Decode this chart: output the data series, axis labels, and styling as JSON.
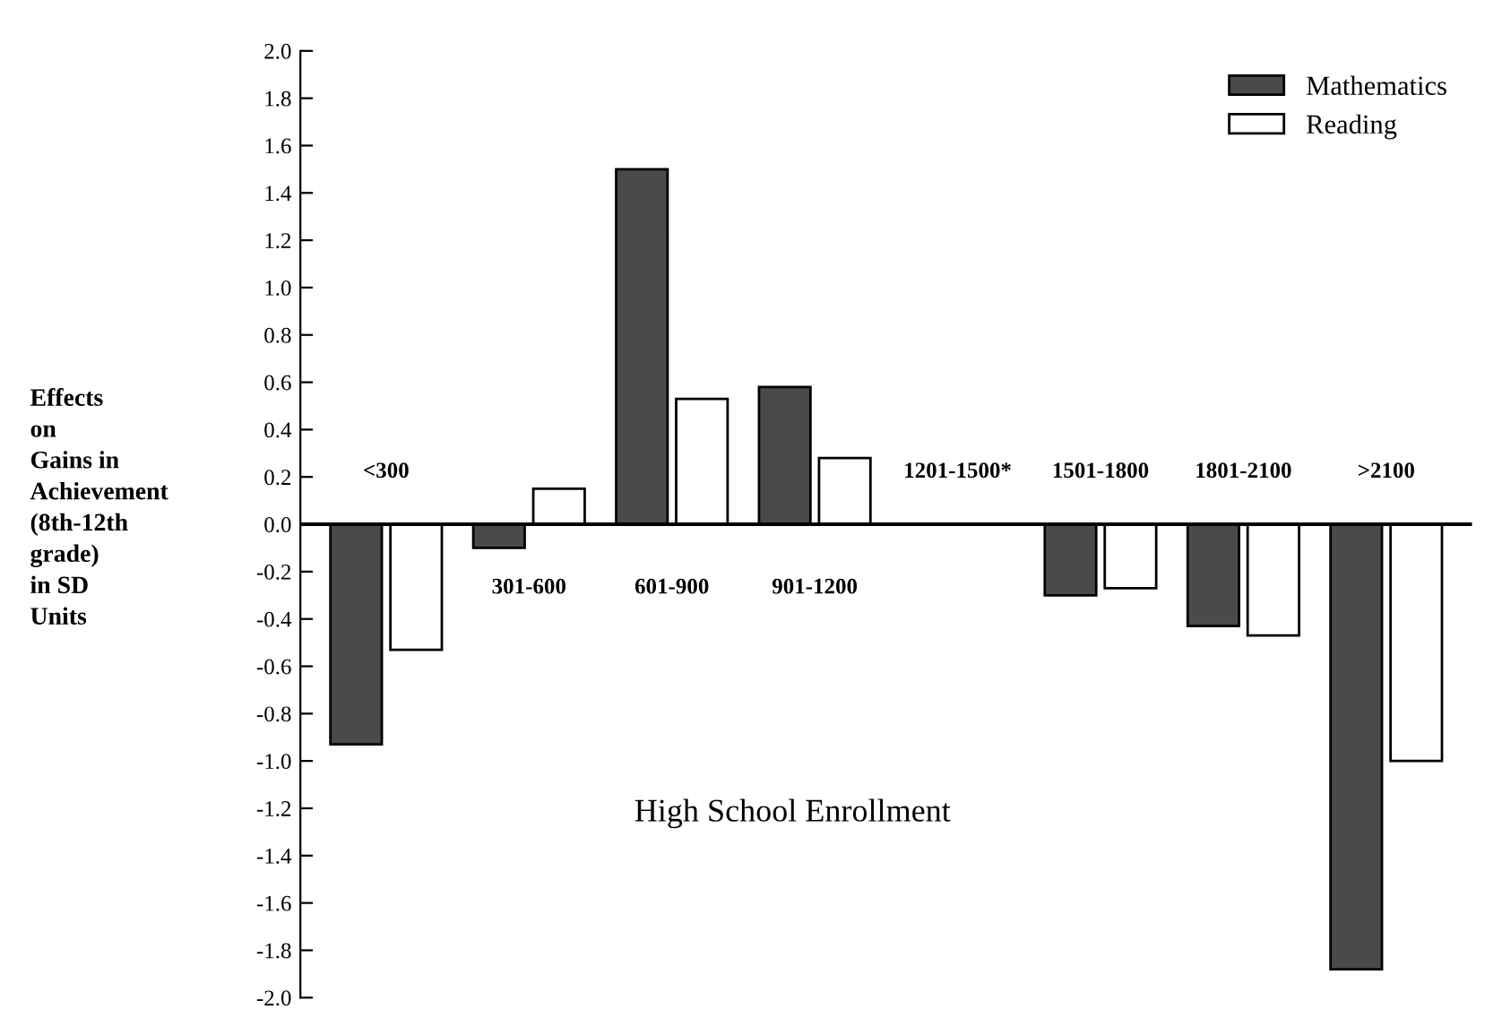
{
  "chart_data": {
    "type": "bar",
    "xlabel": "High School Enrollment",
    "ylabel": "Effects\non\nGains in\nAchievement\n(8th-12th\ngrade)\nin SD\nUnits",
    "categories": [
      "<300",
      "301-600",
      "601-900",
      "901-1200",
      "1201-1500*",
      "1501-1800",
      "1801-2100",
      ">2100"
    ],
    "series": [
      {
        "name": "Mathematics",
        "color": "#4a4a4a",
        "values": [
          -0.93,
          -0.1,
          1.5,
          0.58,
          null,
          -0.3,
          -0.43,
          -1.88
        ]
      },
      {
        "name": "Reading",
        "color": "#ffffff",
        "values": [
          -0.53,
          0.15,
          0.53,
          0.28,
          null,
          -0.27,
          -0.47,
          -1.0
        ]
      }
    ],
    "ylim": [
      -2.0,
      2.0
    ],
    "yticks": [
      {
        "value": 2.0,
        "label": "2.0"
      },
      {
        "value": 1.8,
        "label": "1.8"
      },
      {
        "value": 1.6,
        "label": "1.6"
      },
      {
        "value": 1.4,
        "label": "1.4"
      },
      {
        "value": 1.2,
        "label": "1.2"
      },
      {
        "value": 1.0,
        "label": "1.0"
      },
      {
        "value": 0.8,
        "label": "0.8"
      },
      {
        "value": 0.6,
        "label": "0.6"
      },
      {
        "value": 0.4,
        "label": "0.4"
      },
      {
        "value": 0.2,
        "label": "0.2"
      },
      {
        "value": 0.0,
        "label": "0.0"
      },
      {
        "value": -0.2,
        "label": "-0.2"
      },
      {
        "value": -0.4,
        "label": "-0.4"
      },
      {
        "value": -0.6,
        "label": "-0.6"
      },
      {
        "value": -0.8,
        "label": "-0.8"
      },
      {
        "value": -1.0,
        "label": "-1.0"
      },
      {
        "value": -1.2,
        "label": "-1.2"
      },
      {
        "value": -1.4,
        "label": "-1.4"
      },
      {
        "value": -1.6,
        "label": "-1.6"
      },
      {
        "value": -1.8,
        "label": "-1.8"
      },
      {
        "value": -2.0,
        "label": "-2.0"
      }
    ],
    "grid": false,
    "legend": "top right"
  }
}
